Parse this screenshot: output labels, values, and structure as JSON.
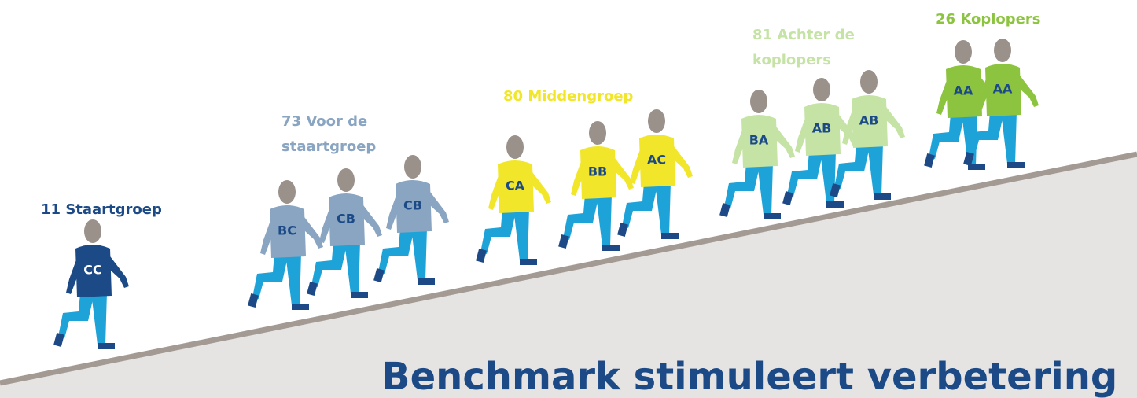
{
  "title": "Benchmark stimuleert verbetering",
  "groups": [
    {
      "label_lines": [
        "11 Staartgroep"
      ],
      "color": "#1c4a87",
      "text_color": "#ffffff",
      "runners": [
        "CC"
      ]
    },
    {
      "label_lines": [
        "73 Voor de",
        "staartgroep"
      ],
      "color": "#89a5c2",
      "text_color": "#1c4a87",
      "runners": [
        "BC",
        "CB",
        "CB"
      ]
    },
    {
      "label_lines": [
        "80 Middengroep"
      ],
      "color": "#f1e62a",
      "text_color": "#1c4a87",
      "runners": [
        "CA",
        "BB",
        "AC"
      ]
    },
    {
      "label_lines": [
        "81 Achter de",
        "koplopers"
      ],
      "color": "#c4e3a4",
      "text_color": "#1c4a87",
      "runners": [
        "BA",
        "AB",
        "AB"
      ]
    },
    {
      "label_lines": [
        "26 Koplopers"
      ],
      "color": "#8cc43f",
      "text_color": "#1c4a87",
      "runners": [
        "AA",
        "AA"
      ]
    }
  ]
}
